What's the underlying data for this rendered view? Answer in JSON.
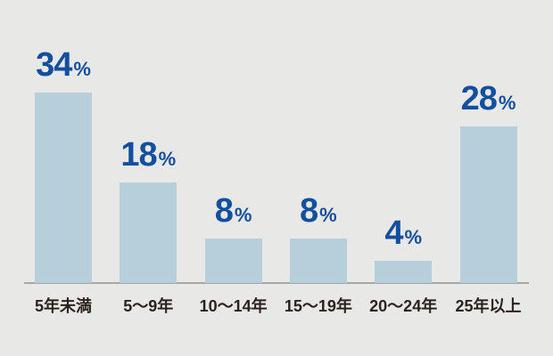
{
  "chart_data": {
    "type": "bar",
    "categories": [
      "5年未満",
      "5〜9年",
      "10〜14年",
      "15〜19年",
      "20〜24年",
      "25年以上"
    ],
    "values": [
      34,
      18,
      8,
      8,
      4,
      28
    ],
    "value_suffix": "%",
    "value_labels": [
      "34%",
      "18%",
      "8%",
      "8%",
      "4%",
      "28%"
    ],
    "title": "",
    "xlabel": "",
    "ylabel": "",
    "ylim": [
      0,
      40
    ],
    "grid": false,
    "legend": "none",
    "bar_orientation": "vertical"
  },
  "style": {
    "background_color": "#e8e8e7",
    "bar_color": "#b7cedb",
    "value_label_color": "#124f9e",
    "category_label_color": "#2b221e",
    "axis_line_color": "#a6a6a6"
  }
}
